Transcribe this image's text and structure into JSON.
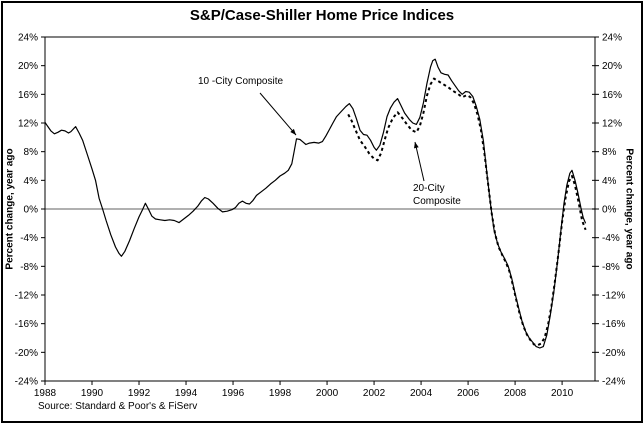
{
  "title": "S&P/Case-Shiller Home Price Indices",
  "source_note": "Source: Standard & Poor's & FiServ",
  "colors": {
    "background": "#ffffff",
    "border": "#000000",
    "line": "#000000",
    "zero_line": "#808080",
    "text": "#000000"
  },
  "chart_data": {
    "type": "line",
    "title": "S&P/Case-Shiller Home Price Indices",
    "xlabel": "",
    "ylabel_left": "Percent change, year ago",
    "ylabel_right": "Percent change, year ago",
    "xlim": [
      1988,
      2011.4
    ],
    "ylim": [
      -24,
      24
    ],
    "ytick_step": 4,
    "ytick_suffix": "%",
    "xticks": [
      1988,
      1990,
      1992,
      1994,
      1996,
      1998,
      2000,
      2002,
      2004,
      2006,
      2008,
      2010
    ],
    "grid": false,
    "zero_line": true,
    "legend_position": "none",
    "annotations": [
      {
        "text": "10 -City Composite",
        "series": "10-City Composite"
      },
      {
        "text": "20-City\nComposite",
        "series": "20-City Composite"
      }
    ],
    "series": [
      {
        "name": "10-City Composite",
        "line_style": "solid",
        "points": [
          [
            1988.0,
            12.1
          ],
          [
            1988.1,
            11.6
          ],
          [
            1988.25,
            10.9
          ],
          [
            1988.4,
            10.5
          ],
          [
            1988.55,
            10.7
          ],
          [
            1988.7,
            11.0
          ],
          [
            1988.85,
            10.9
          ],
          [
            1989.0,
            10.6
          ],
          [
            1989.1,
            10.8
          ],
          [
            1989.3,
            11.5
          ],
          [
            1989.45,
            10.6
          ],
          [
            1989.6,
            9.6
          ],
          [
            1989.8,
            7.6
          ],
          [
            1990.0,
            5.6
          ],
          [
            1990.15,
            4.0
          ],
          [
            1990.3,
            1.5
          ],
          [
            1990.45,
            0.0
          ],
          [
            1990.6,
            -1.6
          ],
          [
            1990.8,
            -3.6
          ],
          [
            1991.0,
            -5.3
          ],
          [
            1991.15,
            -6.2
          ],
          [
            1991.25,
            -6.6
          ],
          [
            1991.4,
            -5.9
          ],
          [
            1991.6,
            -4.4
          ],
          [
            1991.8,
            -2.7
          ],
          [
            1992.0,
            -1.1
          ],
          [
            1992.15,
            -0.1
          ],
          [
            1992.27,
            0.8
          ],
          [
            1992.4,
            0.0
          ],
          [
            1992.55,
            -1.0
          ],
          [
            1992.7,
            -1.4
          ],
          [
            1992.9,
            -1.5
          ],
          [
            1993.1,
            -1.6
          ],
          [
            1993.3,
            -1.5
          ],
          [
            1993.5,
            -1.6
          ],
          [
            1993.7,
            -1.9
          ],
          [
            1993.9,
            -1.4
          ],
          [
            1994.1,
            -0.9
          ],
          [
            1994.3,
            -0.3
          ],
          [
            1994.5,
            0.4
          ],
          [
            1994.65,
            1.1
          ],
          [
            1994.8,
            1.6
          ],
          [
            1994.95,
            1.4
          ],
          [
            1995.15,
            0.8
          ],
          [
            1995.35,
            0.1
          ],
          [
            1995.55,
            -0.4
          ],
          [
            1995.75,
            -0.3
          ],
          [
            1995.95,
            -0.1
          ],
          [
            1996.1,
            0.2
          ],
          [
            1996.25,
            0.8
          ],
          [
            1996.4,
            1.1
          ],
          [
            1996.55,
            0.8
          ],
          [
            1996.7,
            0.7
          ],
          [
            1996.85,
            1.2
          ],
          [
            1997.0,
            1.9
          ],
          [
            1997.2,
            2.4
          ],
          [
            1997.4,
            2.9
          ],
          [
            1997.6,
            3.5
          ],
          [
            1997.8,
            4.0
          ],
          [
            1998.0,
            4.6
          ],
          [
            1998.2,
            5.0
          ],
          [
            1998.35,
            5.4
          ],
          [
            1998.5,
            6.3
          ],
          [
            1998.6,
            8.0
          ],
          [
            1998.7,
            9.8
          ],
          [
            1998.85,
            9.7
          ],
          [
            1999.0,
            9.3
          ],
          [
            1999.1,
            9.0
          ],
          [
            1999.25,
            9.2
          ],
          [
            1999.45,
            9.3
          ],
          [
            1999.65,
            9.2
          ],
          [
            1999.8,
            9.4
          ],
          [
            1999.95,
            10.2
          ],
          [
            2000.1,
            11.1
          ],
          [
            2000.25,
            12.0
          ],
          [
            2000.4,
            12.9
          ],
          [
            2000.6,
            13.6
          ],
          [
            2000.8,
            14.3
          ],
          [
            2000.95,
            14.7
          ],
          [
            2001.1,
            14.0
          ],
          [
            2001.25,
            12.6
          ],
          [
            2001.4,
            11.0
          ],
          [
            2001.55,
            10.4
          ],
          [
            2001.7,
            10.3
          ],
          [
            2001.85,
            9.6
          ],
          [
            2002.0,
            8.6
          ],
          [
            2002.1,
            8.2
          ],
          [
            2002.25,
            8.9
          ],
          [
            2002.4,
            10.7
          ],
          [
            2002.55,
            12.9
          ],
          [
            2002.7,
            14.1
          ],
          [
            2002.85,
            14.9
          ],
          [
            2003.0,
            15.4
          ],
          [
            2003.15,
            14.4
          ],
          [
            2003.3,
            13.4
          ],
          [
            2003.5,
            12.5
          ],
          [
            2003.65,
            12.0
          ],
          [
            2003.8,
            11.8
          ],
          [
            2003.95,
            12.8
          ],
          [
            2004.1,
            14.8
          ],
          [
            2004.25,
            17.5
          ],
          [
            2004.4,
            19.8
          ],
          [
            2004.5,
            20.7
          ],
          [
            2004.6,
            20.9
          ],
          [
            2004.72,
            19.8
          ],
          [
            2004.85,
            19.0
          ],
          [
            2005.0,
            18.8
          ],
          [
            2005.15,
            18.7
          ],
          [
            2005.3,
            17.9
          ],
          [
            2005.45,
            17.2
          ],
          [
            2005.6,
            16.5
          ],
          [
            2005.75,
            16.0
          ],
          [
            2005.9,
            16.4
          ],
          [
            2006.05,
            16.3
          ],
          [
            2006.2,
            15.7
          ],
          [
            2006.35,
            14.3
          ],
          [
            2006.5,
            12.5
          ],
          [
            2006.65,
            9.5
          ],
          [
            2006.8,
            5.0
          ],
          [
            2006.95,
            0.8
          ],
          [
            2007.1,
            -2.8
          ],
          [
            2007.25,
            -4.8
          ],
          [
            2007.4,
            -6.0
          ],
          [
            2007.55,
            -6.9
          ],
          [
            2007.7,
            -7.9
          ],
          [
            2007.85,
            -9.6
          ],
          [
            2008.0,
            -11.8
          ],
          [
            2008.15,
            -13.8
          ],
          [
            2008.3,
            -15.7
          ],
          [
            2008.45,
            -17.1
          ],
          [
            2008.6,
            -18.0
          ],
          [
            2008.75,
            -18.6
          ],
          [
            2008.9,
            -19.2
          ],
          [
            2009.05,
            -19.4
          ],
          [
            2009.2,
            -19.2
          ],
          [
            2009.35,
            -17.6
          ],
          [
            2009.5,
            -14.8
          ],
          [
            2009.65,
            -11.5
          ],
          [
            2009.8,
            -7.5
          ],
          [
            2009.95,
            -3.0
          ],
          [
            2010.08,
            0.8
          ],
          [
            2010.2,
            3.3
          ],
          [
            2010.33,
            5.0
          ],
          [
            2010.42,
            5.4
          ],
          [
            2010.55,
            4.0
          ],
          [
            2010.67,
            2.3
          ],
          [
            2010.8,
            0.2
          ],
          [
            2010.9,
            -1.2
          ],
          [
            2011.0,
            -2.0
          ]
        ]
      },
      {
        "name": "20-City Composite",
        "line_style": "dashed",
        "points": [
          [
            2000.9,
            13.2
          ],
          [
            2001.05,
            12.3
          ],
          [
            2001.2,
            11.1
          ],
          [
            2001.4,
            9.6
          ],
          [
            2001.6,
            8.7
          ],
          [
            2001.8,
            7.7
          ],
          [
            2002.0,
            7.0
          ],
          [
            2002.15,
            6.8
          ],
          [
            2002.3,
            7.8
          ],
          [
            2002.45,
            9.6
          ],
          [
            2002.6,
            11.3
          ],
          [
            2002.8,
            12.7
          ],
          [
            2003.0,
            13.5
          ],
          [
            2003.2,
            12.7
          ],
          [
            2003.4,
            11.8
          ],
          [
            2003.6,
            11.0
          ],
          [
            2003.8,
            10.7
          ],
          [
            2003.95,
            11.6
          ],
          [
            2004.1,
            13.4
          ],
          [
            2004.25,
            15.8
          ],
          [
            2004.4,
            17.4
          ],
          [
            2004.55,
            18.2
          ],
          [
            2004.75,
            17.8
          ],
          [
            2004.95,
            17.4
          ],
          [
            2005.15,
            17.0
          ],
          [
            2005.35,
            16.5
          ],
          [
            2005.55,
            16.1
          ],
          [
            2005.75,
            15.6
          ],
          [
            2005.95,
            15.9
          ],
          [
            2006.1,
            15.6
          ],
          [
            2006.25,
            14.7
          ],
          [
            2006.4,
            13.2
          ],
          [
            2006.55,
            11.0
          ],
          [
            2006.7,
            7.7
          ],
          [
            2006.85,
            3.5
          ],
          [
            2007.0,
            -0.5
          ],
          [
            2007.15,
            -3.5
          ],
          [
            2007.3,
            -5.3
          ],
          [
            2007.45,
            -6.4
          ],
          [
            2007.6,
            -7.4
          ],
          [
            2007.75,
            -8.6
          ],
          [
            2007.9,
            -10.5
          ],
          [
            2008.05,
            -12.7
          ],
          [
            2008.2,
            -14.7
          ],
          [
            2008.35,
            -16.3
          ],
          [
            2008.5,
            -17.5
          ],
          [
            2008.65,
            -18.3
          ],
          [
            2008.8,
            -18.9
          ],
          [
            2008.95,
            -19.0
          ],
          [
            2009.1,
            -18.8
          ],
          [
            2009.25,
            -18.0
          ],
          [
            2009.4,
            -16.2
          ],
          [
            2009.55,
            -13.5
          ],
          [
            2009.7,
            -10.0
          ],
          [
            2009.85,
            -6.0
          ],
          [
            2010.0,
            -1.8
          ],
          [
            2010.15,
            1.6
          ],
          [
            2010.3,
            3.9
          ],
          [
            2010.42,
            4.6
          ],
          [
            2010.55,
            3.3
          ],
          [
            2010.7,
            1.0
          ],
          [
            2010.85,
            -1.6
          ],
          [
            2011.0,
            -2.9
          ]
        ]
      }
    ]
  }
}
